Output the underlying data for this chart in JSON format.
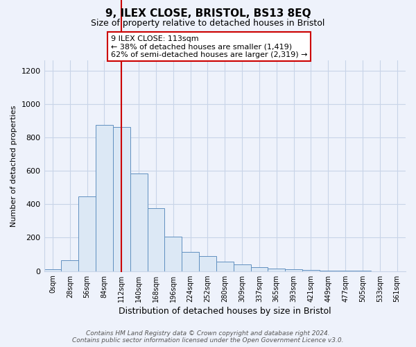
{
  "title": "9, ILEX CLOSE, BRISTOL, BS13 8EQ",
  "subtitle": "Size of property relative to detached houses in Bristol",
  "xlabel": "Distribution of detached houses by size in Bristol",
  "ylabel": "Number of detached properties",
  "bar_color": "#dce8f5",
  "bar_edge_color": "#6090c0",
  "annotation_box_edge": "#cc0000",
  "annotation_line1": "9 ILEX CLOSE: 113sqm",
  "annotation_line2": "← 38% of detached houses are smaller (1,419)",
  "annotation_line3": "62% of semi-detached houses are larger (2,319) →",
  "property_bin_index": 4,
  "categories": [
    "0sqm",
    "28sqm",
    "56sqm",
    "84sqm",
    "112sqm",
    "140sqm",
    "168sqm",
    "196sqm",
    "224sqm",
    "252sqm",
    "280sqm",
    "309sqm",
    "337sqm",
    "365sqm",
    "393sqm",
    "421sqm",
    "449sqm",
    "477sqm",
    "505sqm",
    "533sqm",
    "561sqm"
  ],
  "values": [
    10,
    65,
    445,
    875,
    860,
    585,
    375,
    205,
    115,
    90,
    57,
    42,
    22,
    17,
    10,
    7,
    3,
    2,
    1,
    0,
    0
  ],
  "ylim": [
    0,
    1260
  ],
  "yticks": [
    0,
    200,
    400,
    600,
    800,
    1000,
    1200
  ],
  "footer_line1": "Contains HM Land Registry data © Crown copyright and database right 2024.",
  "footer_line2": "Contains public sector information licensed under the Open Government Licence v3.0.",
  "background_color": "#eef2fb",
  "grid_color": "#c8d4e8",
  "red_line_color": "#cc0000"
}
